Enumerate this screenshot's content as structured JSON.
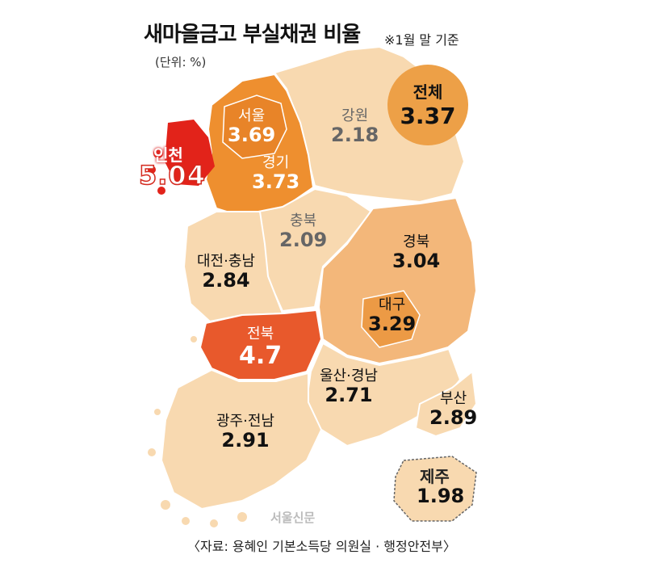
{
  "title": "새마을금고 부실채권 비율",
  "note": "※1월 말 기준",
  "unit": "(단위: %)",
  "total": {
    "name": "전체",
    "value": "3.37"
  },
  "regions": {
    "seoul": {
      "name": "서울",
      "value": "3.69"
    },
    "gyeonggi": {
      "name": "경기",
      "value": "3.73"
    },
    "incheon": {
      "name": "인천",
      "value": "5.04"
    },
    "gangwon": {
      "name": "강원",
      "value": "2.18"
    },
    "chungbuk": {
      "name": "충북",
      "value": "2.09"
    },
    "daejeon_chungnam": {
      "name": "대전·충남",
      "value": "2.84"
    },
    "gyeongbuk": {
      "name": "경북",
      "value": "3.04"
    },
    "daegu": {
      "name": "대구",
      "value": "3.29"
    },
    "jeonbuk": {
      "name": "전북",
      "value": "4.7"
    },
    "ulsan_gyeongnam": {
      "name": "울산·경남",
      "value": "2.71"
    },
    "busan": {
      "name": "부산",
      "value": "2.89"
    },
    "gwangju_jeonnam": {
      "name": "광주·전남",
      "value": "2.91"
    },
    "jeju": {
      "name": "제주",
      "value": "1.98"
    }
  },
  "colors": {
    "light": "#f8d9b0",
    "medium": "#f3b77a",
    "dark": "#ec9a45",
    "gyeonggi": "#ee8f2f",
    "jeonbuk": "#e8592c",
    "incheon": "#e2231a",
    "label_gray": "#666666"
  },
  "watermark": "서울신문",
  "source": "〈자료: 용혜인 기본소득당 의원실 · 행정안전부〉"
}
